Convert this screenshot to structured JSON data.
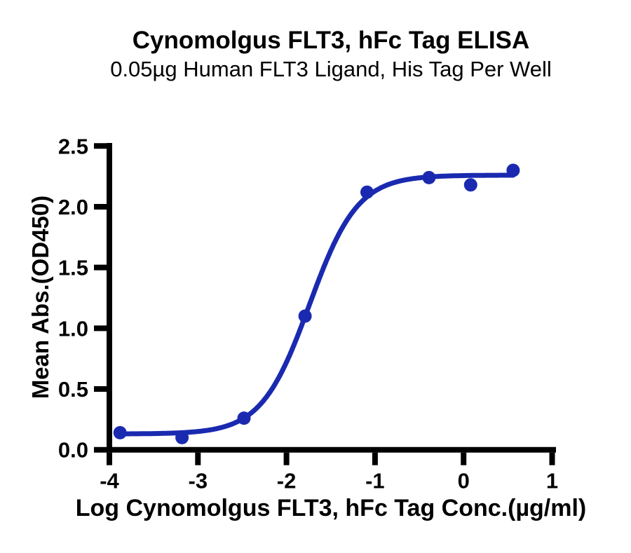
{
  "chart_data": {
    "type": "scatter",
    "title": "Cynomolgus FLT3, hFc Tag ELISA",
    "subtitle": "0.05µg Human FLT3 Ligand, His Tag Per Well",
    "xlabel": "Log Cynomolgus FLT3, hFc Tag Conc.(µg/ml)",
    "ylabel": "Mean Abs.(OD450)",
    "xlim": [
      -4,
      1
    ],
    "ylim": [
      0,
      2.5
    ],
    "x_ticks": [
      -4,
      -3,
      -2,
      -1,
      0,
      1
    ],
    "x_tick_labels": [
      "-4",
      "-3",
      "-2",
      "-1",
      "0",
      "1"
    ],
    "y_ticks": [
      0,
      0.5,
      1,
      1.5,
      2,
      2.5
    ],
    "y_tick_labels": [
      "0.0",
      "0.5",
      "1.0",
      "1.5",
      "2.0",
      "2.5"
    ],
    "grid": false,
    "legend": null,
    "axis_color": "#000000",
    "background": "#ffffff",
    "series": [
      {
        "marker": "circle",
        "color": "#1a2ab0",
        "points": [
          {
            "x": -3.88,
            "y": 0.14
          },
          {
            "x": -3.18,
            "y": 0.1
          },
          {
            "x": -2.48,
            "y": 0.26
          },
          {
            "x": -1.79,
            "y": 1.1
          },
          {
            "x": -1.09,
            "y": 2.12
          },
          {
            "x": -0.39,
            "y": 2.24
          },
          {
            "x": 0.08,
            "y": 2.18
          },
          {
            "x": 0.56,
            "y": 2.3
          }
        ]
      }
    ],
    "fit_curve": {
      "model": "4PL sigmoidal dose-response",
      "bottom": 0.13,
      "top": 2.26,
      "log_ec50": -1.74,
      "hill_slope": 1.6,
      "x_start": -3.88,
      "x_end": 0.56,
      "color": "#1a2ab0"
    }
  }
}
